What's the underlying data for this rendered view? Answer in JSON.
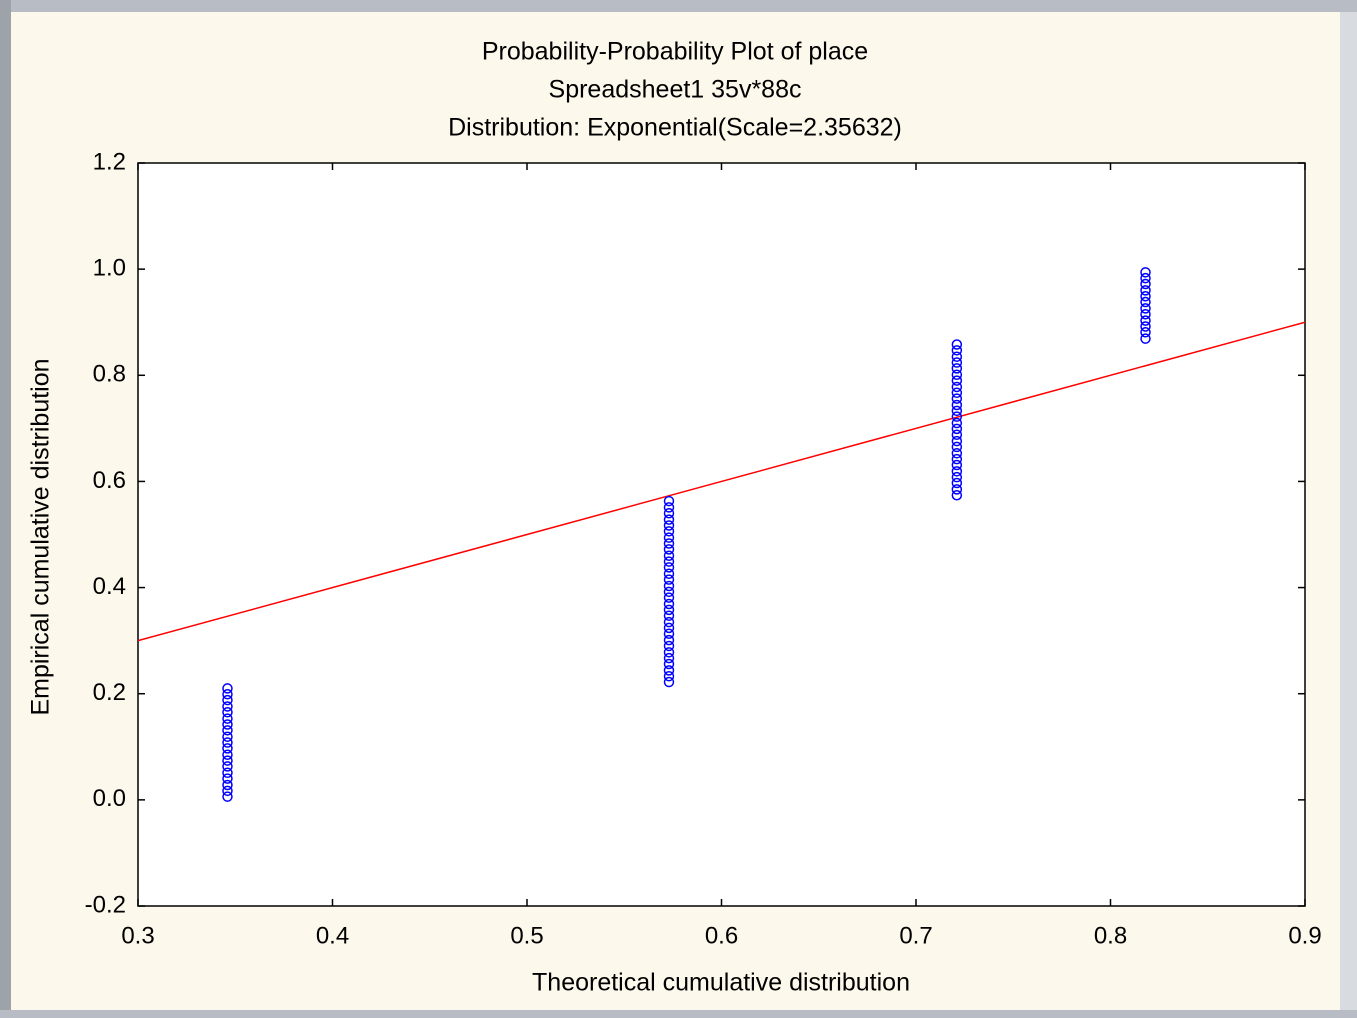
{
  "chart_data": {
    "type": "scatter",
    "title": "Probability-Probability Plot of place",
    "subtitle": "Spreadsheet1 35v*88c",
    "annotation": "Distribution: Exponential(Scale=2.35632)",
    "x_label": "Theoretical cumulative distribution",
    "y_label": "Empirical cumulative distribution",
    "xlim": [
      0.3,
      0.9
    ],
    "xticks": [
      0.3,
      0.4,
      0.5,
      0.6,
      0.7,
      0.8,
      0.9
    ],
    "ylim": [
      -0.2,
      1.2
    ],
    "yticks": [
      -0.2,
      {
        "value": 0,
        "label": "0.0"
      },
      0.2,
      0.4,
      0.6,
      0.8,
      {
        "value": 1,
        "label": "1.0"
      },
      1.2
    ],
    "series": [
      {
        "color": "#0000ff",
        "x": [
          0.346,
          0.346,
          0.346,
          0.346,
          0.346,
          0.346,
          0.346,
          0.346,
          0.346,
          0.346,
          0.346,
          0.346,
          0.346,
          0.346,
          0.346,
          0.346,
          0.346,
          0.346,
          0.346,
          0.573,
          0.573,
          0.573,
          0.573,
          0.573,
          0.573,
          0.573,
          0.573,
          0.573,
          0.573,
          0.573,
          0.573,
          0.573,
          0.573,
          0.573,
          0.573,
          0.573,
          0.573,
          0.573,
          0.573,
          0.573,
          0.573,
          0.573,
          0.573,
          0.573,
          0.573,
          0.573,
          0.573,
          0.573,
          0.573,
          0.573,
          0.721,
          0.721,
          0.721,
          0.721,
          0.721,
          0.721,
          0.721,
          0.721,
          0.721,
          0.721,
          0.721,
          0.721,
          0.721,
          0.721,
          0.721,
          0.721,
          0.721,
          0.721,
          0.721,
          0.721,
          0.721,
          0.721,
          0.721,
          0.721,
          0.721,
          0.721,
          0.818,
          0.818,
          0.818,
          0.818,
          0.818,
          0.818,
          0.818,
          0.818,
          0.818,
          0.818,
          0.818,
          0.818
        ],
        "values": [
          0.006,
          0.017,
          0.028,
          0.04,
          0.051,
          0.063,
          0.074,
          0.085,
          0.097,
          0.108,
          0.119,
          0.131,
          0.142,
          0.153,
          0.165,
          0.176,
          0.188,
          0.199,
          0.21,
          0.222,
          0.233,
          0.244,
          0.256,
          0.267,
          0.278,
          0.29,
          0.301,
          0.313,
          0.324,
          0.335,
          0.347,
          0.358,
          0.369,
          0.381,
          0.392,
          0.403,
          0.415,
          0.426,
          0.438,
          0.449,
          0.46,
          0.472,
          0.483,
          0.494,
          0.506,
          0.517,
          0.528,
          0.54,
          0.551,
          0.563,
          0.574,
          0.585,
          0.597,
          0.608,
          0.619,
          0.631,
          0.642,
          0.653,
          0.665,
          0.676,
          0.688,
          0.699,
          0.71,
          0.722,
          0.733,
          0.744,
          0.756,
          0.767,
          0.778,
          0.79,
          0.801,
          0.813,
          0.824,
          0.835,
          0.847,
          0.858,
          0.869,
          0.881,
          0.892,
          0.903,
          0.915,
          0.926,
          0.938,
          0.949,
          0.96,
          0.972,
          0.983,
          0.994
        ]
      }
    ],
    "reference_line": {
      "color": "#ff0000",
      "x": [
        0.3,
        0.9
      ],
      "values": [
        0.3,
        0.9
      ]
    }
  }
}
